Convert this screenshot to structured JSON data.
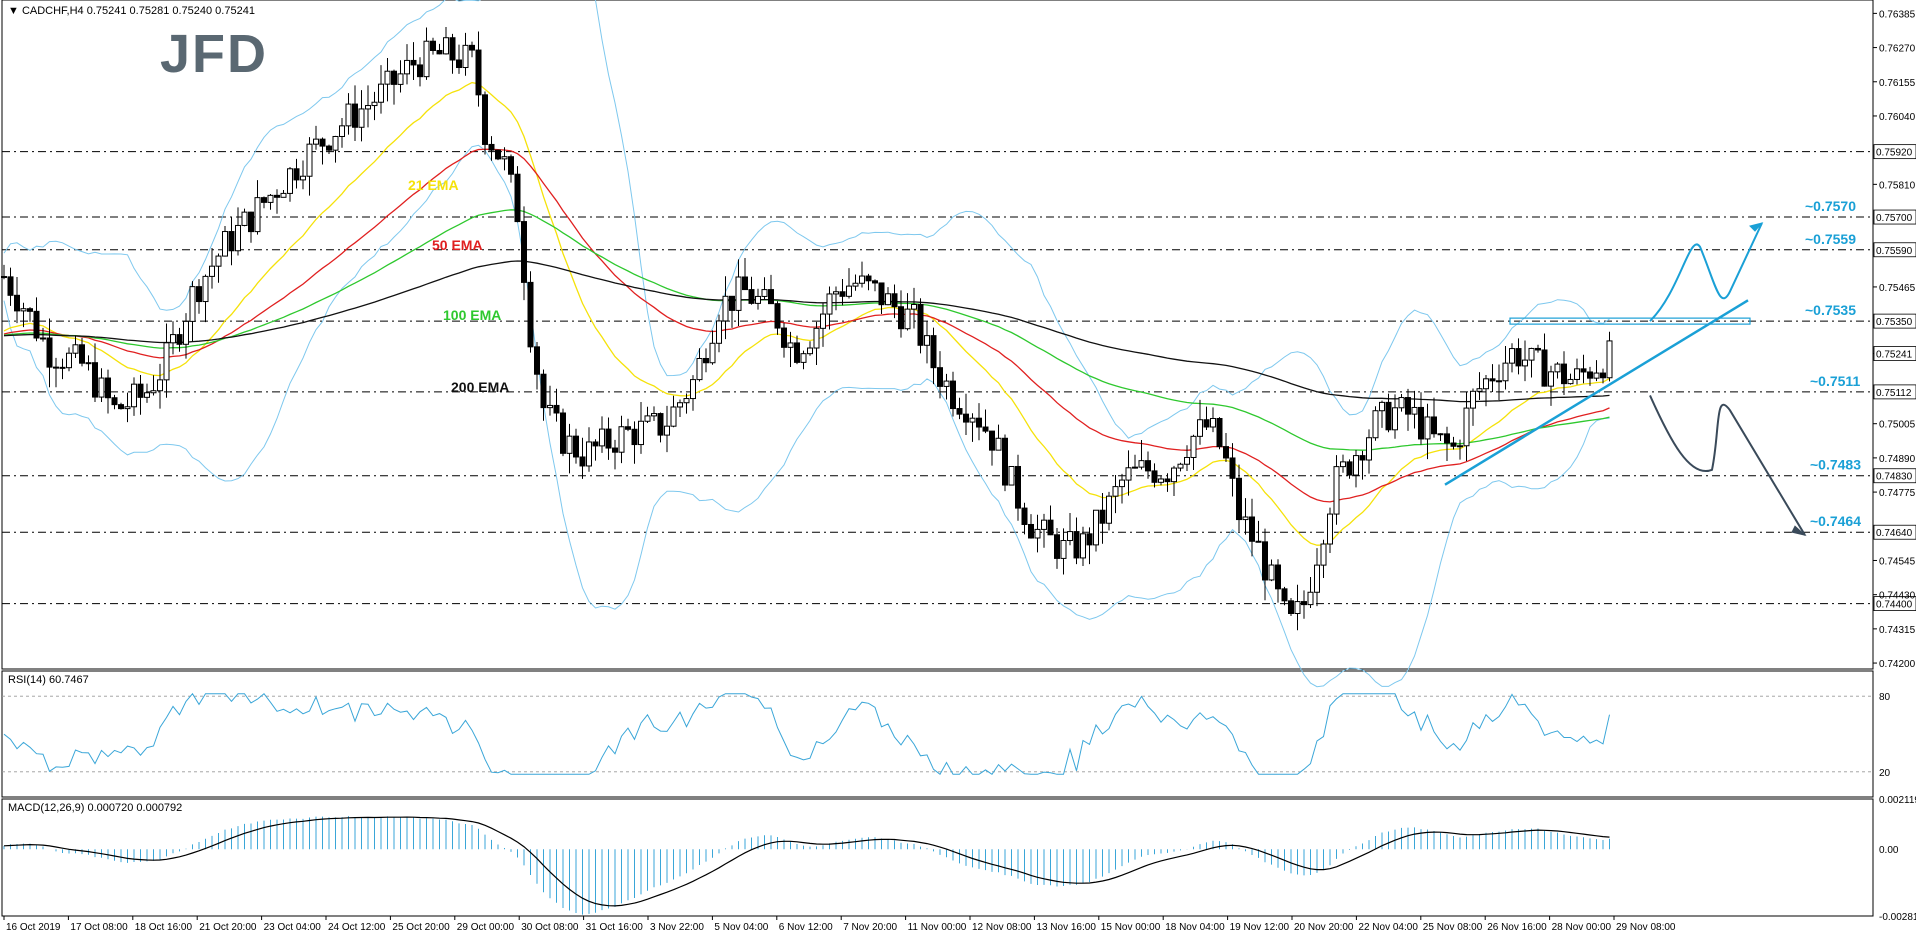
{
  "header": {
    "symbol_line": "▼  CADCHF,H4  0.75241 0.75281 0.75240 0.75241",
    "rsi_title": "RSI(14) 60.7467",
    "macd_title": "MACD(12,26,9) 0.000720 0.000792"
  },
  "logo": "JFD",
  "colors": {
    "annotation": "#1aa0d6",
    "ema21": "#f5e20a",
    "ema50": "#e02020",
    "ema100": "#2ec82e",
    "ema200": "#111111",
    "bollinger": "#7ec8ee",
    "candle": "#000000",
    "trendline": "#1aa0d6",
    "down_arrow": "#3a4a5a"
  },
  "chart_data": {
    "type": "candlestick",
    "symbol": "CADCHF",
    "timeframe": "H4",
    "price_ylim": [
      0.7418,
      0.7643
    ],
    "price_ticks": [
      "0.76385",
      "0.76270",
      "0.76155",
      "0.76040",
      "0.75920",
      "0.75810",
      "0.75700",
      "0.75590",
      "0.75465",
      "0.75350",
      "0.75241",
      "0.75112",
      "0.75005",
      "0.74890",
      "0.74830",
      "0.74775",
      "0.74640",
      "0.74545",
      "0.74430",
      "0.74400",
      "0.74315",
      "0.74200"
    ],
    "x_ticks": [
      "16 Oct 2019",
      "17 Oct 08:00",
      "18 Oct 16:00",
      "21 Oct 20:00",
      "23 Oct 04:00",
      "24 Oct 12:00",
      "25 Oct 20:00",
      "29 Oct 00:00",
      "30 Oct 08:00",
      "31 Oct 16:00",
      "3 Nov 22:00",
      "5 Nov 04:00",
      "6 Nov 12:00",
      "7 Nov 20:00",
      "11 Nov 00:00",
      "12 Nov 08:00",
      "13 Nov 16:00",
      "15 Nov 00:00",
      "18 Nov 04:00",
      "19 Nov 12:00",
      "20 Nov 20:00",
      "22 Nov 04:00",
      "25 Nov 08:00",
      "26 Nov 16:00",
      "28 Nov 00:00",
      "29 Nov 08:00"
    ],
    "horizontal_levels": [
      {
        "value": 0.7592,
        "label": ""
      },
      {
        "value": 0.757,
        "label": "~0.7570"
      },
      {
        "value": 0.7559,
        "label": "~0.7559"
      },
      {
        "value": 0.7535,
        "label": "~0.7535"
      },
      {
        "value": 0.75112,
        "label": "~0.7511"
      },
      {
        "value": 0.7483,
        "label": "~0.7483"
      },
      {
        "value": 0.7464,
        "label": "~0.7464"
      },
      {
        "value": 0.744,
        "label": ""
      }
    ],
    "current_price": "0.75241",
    "ema_labels": [
      "21 EMA",
      "50 EMA",
      "100 EMA",
      "200 EMA"
    ],
    "rsi": {
      "ticks": [
        "80",
        "20"
      ],
      "ylim": [
        0,
        100
      ]
    },
    "macd": {
      "ticks": [
        "0.002119",
        "0.00",
        "-0.002818"
      ],
      "ylim": [
        -0.002818,
        0.002119
      ]
    }
  }
}
